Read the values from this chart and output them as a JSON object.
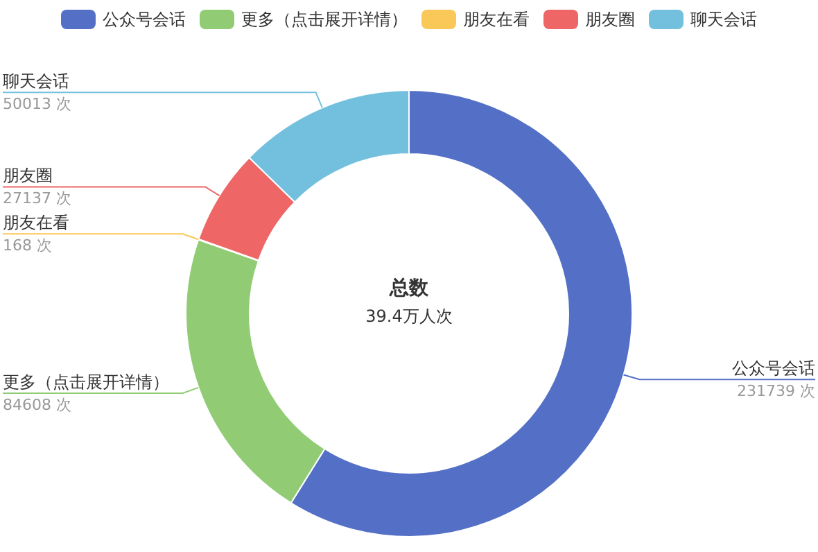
{
  "chart_data": {
    "type": "donut",
    "title": "总数",
    "subtitle": "39.4万人次",
    "categories": [
      "公众号会话",
      "更多（点击展开详情）",
      "朋友在看",
      "朋友圈",
      "聊天会话"
    ],
    "values": [
      231739,
      84608,
      168,
      27137,
      50013
    ],
    "colors": [
      "#5470c6",
      "#91cc75",
      "#fac858",
      "#ee6666",
      "#73c0de"
    ],
    "value_labels": [
      "231739 次",
      "84608 次",
      "168 次",
      "27137 次",
      "50013 次"
    ],
    "legend": "top"
  }
}
